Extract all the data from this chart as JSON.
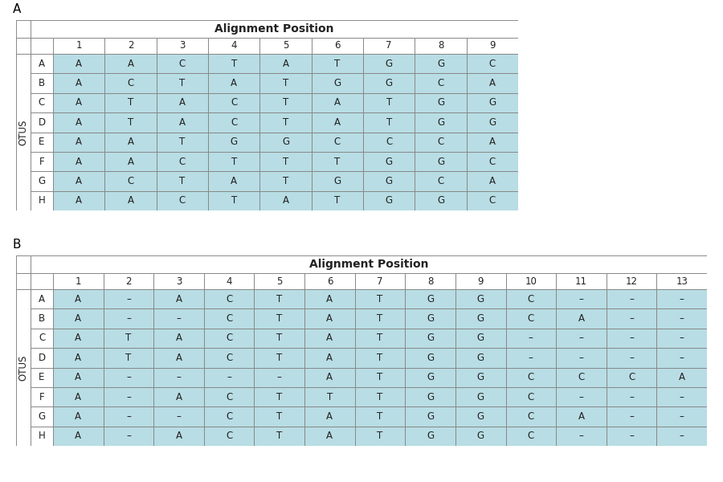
{
  "table_A": {
    "title": "Alignment Position",
    "col_headers": [
      "1",
      "2",
      "3",
      "4",
      "5",
      "6",
      "7",
      "8",
      "9"
    ],
    "row_headers": [
      "A",
      "B",
      "C",
      "D",
      "E",
      "F",
      "G",
      "H"
    ],
    "data": [
      [
        "A",
        "A",
        "C",
        "T",
        "A",
        "T",
        "G",
        "G",
        "C"
      ],
      [
        "A",
        "C",
        "T",
        "A",
        "T",
        "G",
        "G",
        "C",
        "A"
      ],
      [
        "A",
        "T",
        "A",
        "C",
        "T",
        "A",
        "T",
        "G",
        "G"
      ],
      [
        "A",
        "T",
        "A",
        "C",
        "T",
        "A",
        "T",
        "G",
        "G"
      ],
      [
        "A",
        "A",
        "T",
        "G",
        "G",
        "C",
        "C",
        "C",
        "A"
      ],
      [
        "A",
        "A",
        "C",
        "T",
        "T",
        "T",
        "G",
        "G",
        "C"
      ],
      [
        "A",
        "C",
        "T",
        "A",
        "T",
        "G",
        "G",
        "C",
        "A"
      ],
      [
        "A",
        "A",
        "C",
        "T",
        "A",
        "T",
        "G",
        "G",
        "C"
      ]
    ],
    "cell_bg": "#b8dde4",
    "label": "A",
    "otus_label": "OTUS"
  },
  "table_B": {
    "title": "Alignment Position",
    "col_headers": [
      "1",
      "2",
      "3",
      "4",
      "5",
      "6",
      "7",
      "8",
      "9",
      "10",
      "11",
      "12",
      "13"
    ],
    "row_headers": [
      "A",
      "B",
      "C",
      "D",
      "E",
      "F",
      "G",
      "H"
    ],
    "data": [
      [
        "A",
        "–",
        "A",
        "C",
        "T",
        "A",
        "T",
        "G",
        "G",
        "C",
        "–",
        "–",
        "–"
      ],
      [
        "A",
        "–",
        "–",
        "C",
        "T",
        "A",
        "T",
        "G",
        "G",
        "C",
        "A",
        "–",
        "–"
      ],
      [
        "A",
        "T",
        "A",
        "C",
        "T",
        "A",
        "T",
        "G",
        "G",
        "–",
        "–",
        "–",
        "–"
      ],
      [
        "A",
        "T",
        "A",
        "C",
        "T",
        "A",
        "T",
        "G",
        "G",
        "–",
        "–",
        "–",
        "–"
      ],
      [
        "A",
        "–",
        "–",
        "–",
        "–",
        "A",
        "T",
        "G",
        "G",
        "C",
        "C",
        "C",
        "A"
      ],
      [
        "A",
        "–",
        "A",
        "C",
        "T",
        "T",
        "T",
        "G",
        "G",
        "C",
        "–",
        "–",
        "–"
      ],
      [
        "A",
        "–",
        "–",
        "C",
        "T",
        "A",
        "T",
        "G",
        "G",
        "C",
        "A",
        "–",
        "–"
      ],
      [
        "A",
        "–",
        "A",
        "C",
        "T",
        "A",
        "T",
        "G",
        "G",
        "C",
        "–",
        "–",
        "–"
      ]
    ],
    "cell_bg": "#b8dde4",
    "label": "B",
    "otus_label": "OTUS"
  },
  "border_color": "#888888",
  "text_color": "#222222",
  "font_size": 8.5,
  "title_font_size": 10,
  "label_font_size": 11
}
